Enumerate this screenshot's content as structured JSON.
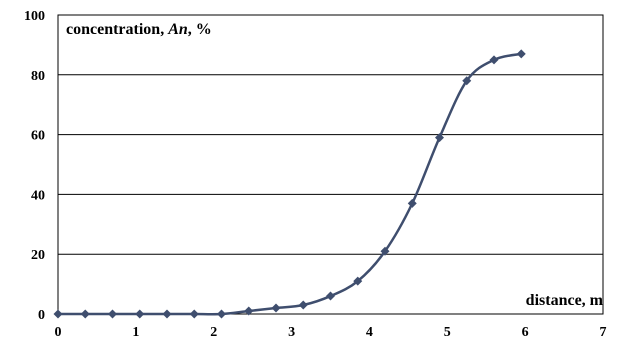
{
  "chart_data": {
    "type": "line",
    "title": "",
    "xlabel": "distance, m",
    "ylabel": {
      "pre": "concentration, ",
      "var": "An",
      "post": ", %"
    },
    "xlim": [
      0,
      7
    ],
    "ylim": [
      0,
      100
    ],
    "x_ticks": [
      0,
      1,
      2,
      3,
      4,
      5,
      6,
      7
    ],
    "y_ticks": [
      0,
      20,
      40,
      60,
      80,
      100
    ],
    "grid": "horizontal",
    "legend": "none",
    "series": [
      {
        "color": "#3f4e6e",
        "marker": "diamond",
        "x": [
          0,
          0.35,
          0.7,
          1.05,
          1.4,
          1.75,
          2.1,
          2.45,
          2.8,
          3.15,
          3.5,
          3.85,
          4.2,
          4.55,
          4.9,
          5.25,
          5.6,
          5.95
        ],
        "y": [
          0,
          0,
          0,
          0,
          0,
          0,
          0,
          1,
          2,
          3,
          6,
          11,
          21,
          37,
          59,
          78,
          85,
          87
        ]
      }
    ]
  }
}
